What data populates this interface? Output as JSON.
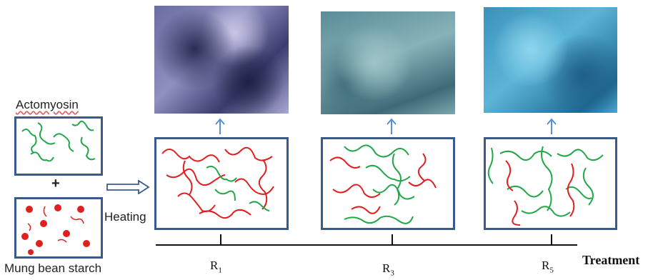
{
  "left": {
    "protein_label": "Actomyosin",
    "plus_sign": "+",
    "starch_label": "Mung bean starch",
    "process_label": "Heating"
  },
  "treatments": [
    {
      "label": "R",
      "sub": "1"
    },
    {
      "label": "R",
      "sub": "3"
    },
    {
      "label": "R",
      "sub": "5"
    }
  ],
  "axis_label": "Treatment",
  "colors": {
    "frame": "#3b5a8c",
    "protein_strand": "#22a84a",
    "starch_strand": "#e02020",
    "arrow": "#5b8fd0"
  }
}
